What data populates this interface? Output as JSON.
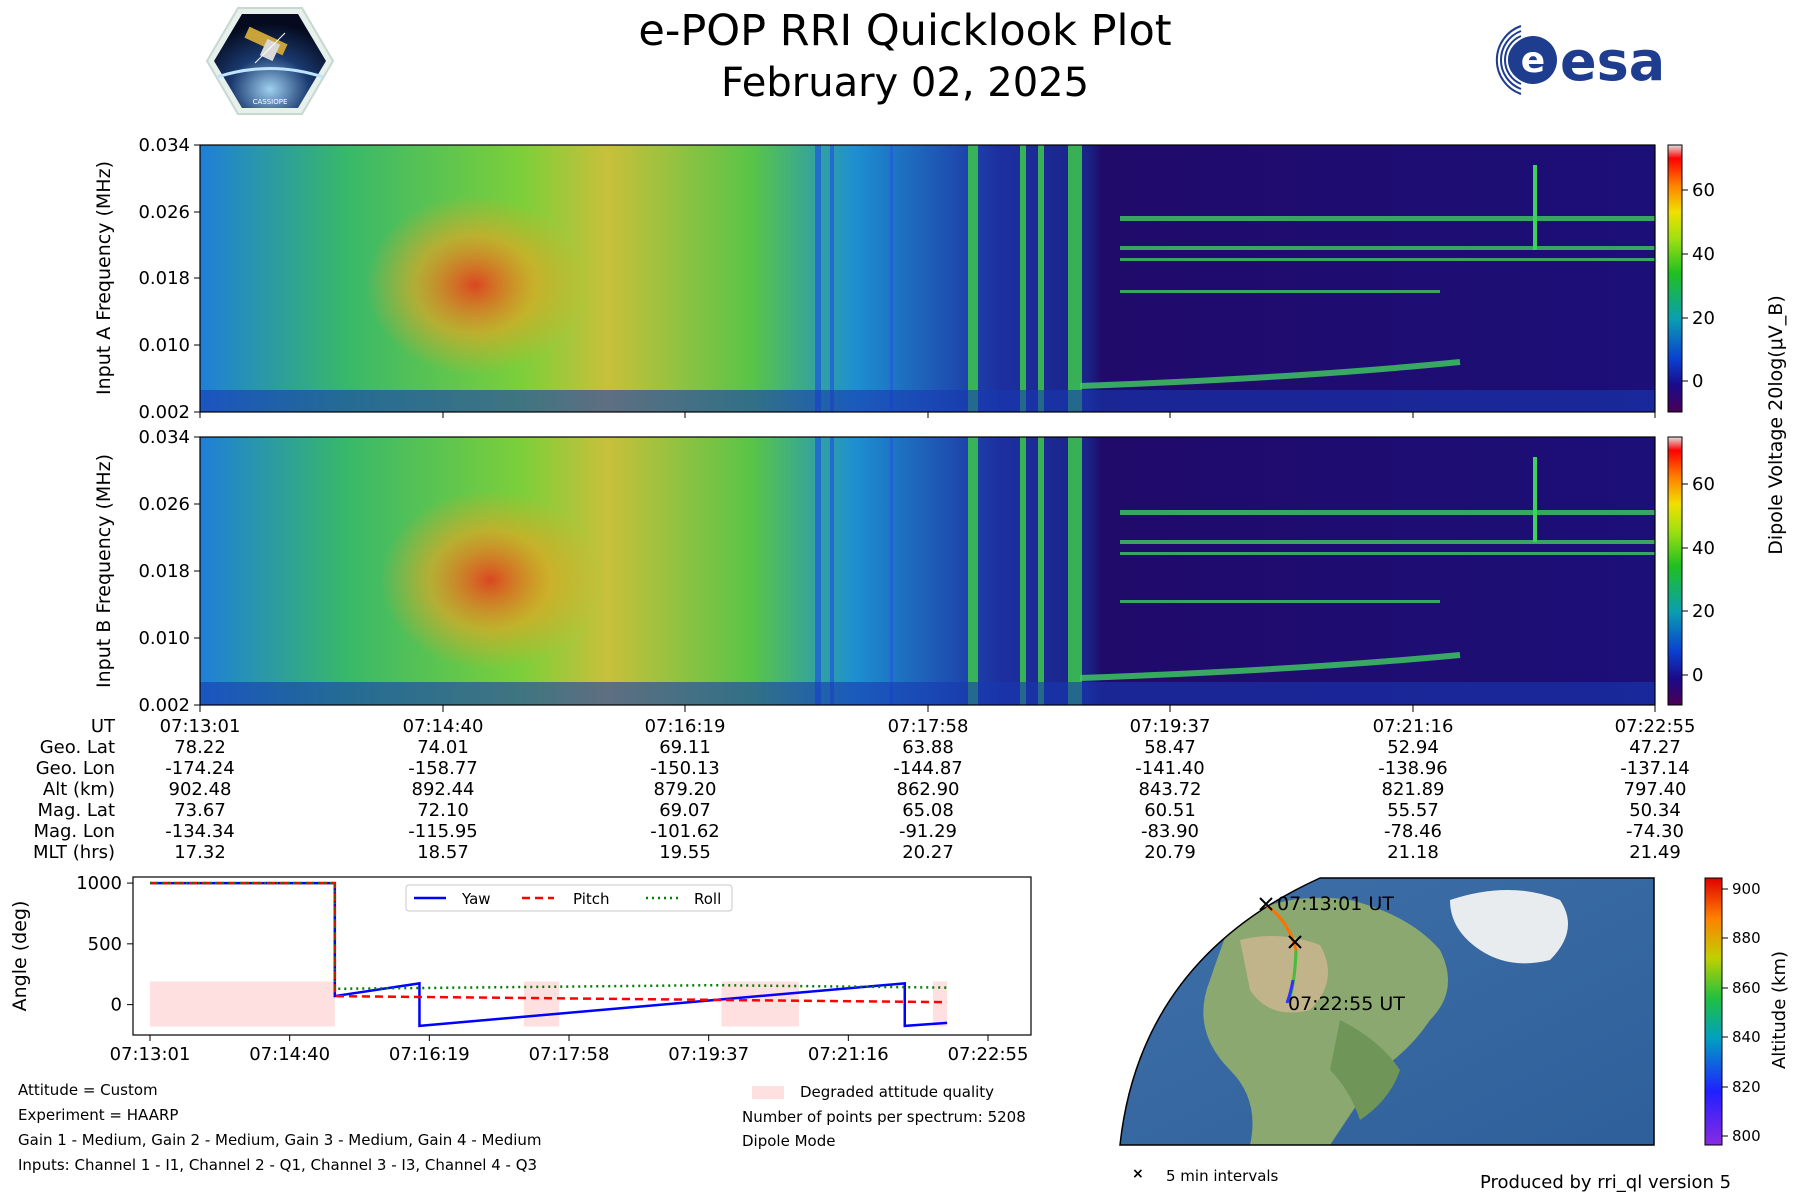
{
  "header": {
    "title": "e-POP RRI Quicklook Plot",
    "date": "February 02, 2025",
    "logo_left": "CASSIOPE",
    "logo_right": "esa"
  },
  "colors": {
    "yaw": "#0000ff",
    "pitch": "#ff0000",
    "roll": "#008000",
    "degraded": "#ffe0e0"
  },
  "chart_data": [
    {
      "type": "heatmap",
      "ylabel": "Input A Frequency (MHz)",
      "yticks": [
        "0.034",
        "0.026",
        "0.018",
        "0.010",
        "0.002"
      ],
      "ylim": [
        0.002,
        0.034
      ],
      "x_range": [
        "07:13:01",
        "07:22:55"
      ]
    },
    {
      "type": "heatmap",
      "ylabel": "Input B Frequency (MHz)",
      "yticks": [
        "0.034",
        "0.026",
        "0.018",
        "0.010",
        "0.002"
      ],
      "ylim": [
        0.002,
        0.034
      ],
      "x_range": [
        "07:13:01",
        "07:22:55"
      ]
    },
    {
      "type": "colorbar",
      "label": "Dipole Voltage 20log(μV_B)",
      "ticks": [
        "60",
        "40",
        "20",
        "0"
      ],
      "range": [
        -10,
        75
      ]
    },
    {
      "type": "line",
      "ylabel": "Angle (deg)",
      "yticks": [
        "1000",
        "500",
        "0"
      ],
      "ylim": [
        -250,
        1050
      ],
      "xticks": [
        "07:13:01",
        "07:14:40",
        "07:16:19",
        "07:17:58",
        "07:19:37",
        "07:21:16",
        "07:22:55"
      ],
      "x_seconds_range": [
        0,
        594
      ],
      "series": [
        {
          "name": "Yaw",
          "points": [
            [
              0,
              1000
            ],
            [
              131,
              1000
            ],
            [
              131,
              70
            ],
            [
              191,
              175
            ],
            [
              191,
              -175
            ],
            [
              535,
              175
            ],
            [
              535,
              -175
            ],
            [
              565,
              -150
            ]
          ]
        },
        {
          "name": "Pitch",
          "points": [
            [
              0,
              1000
            ],
            [
              131,
              1000
            ],
            [
              131,
              70
            ],
            [
              565,
              20
            ]
          ]
        },
        {
          "name": "Roll",
          "points": [
            [
              0,
              1000
            ],
            [
              131,
              1000
            ],
            [
              131,
              130
            ],
            [
              400,
              160
            ],
            [
              565,
              140
            ]
          ]
        }
      ],
      "degraded_intervals": [
        [
          0,
          131
        ],
        [
          265,
          290
        ],
        [
          405,
          460
        ],
        [
          555,
          565
        ]
      ],
      "degraded_range": [
        -180,
        190
      ],
      "legend": [
        "Yaw",
        "Pitch",
        "Roll"
      ]
    },
    {
      "type": "colorbar",
      "label": "Altitude (km)",
      "ticks": [
        "900",
        "880",
        "860",
        "840",
        "820",
        "800"
      ],
      "range": [
        796,
        904
      ]
    }
  ],
  "ephemeris": {
    "labels": [
      "UT",
      "Geo. Lat",
      "Geo. Lon",
      "Alt (km)",
      "Mag. Lat",
      "Mag. Lon",
      "MLT (hrs)"
    ],
    "columns": [
      [
        "07:13:01",
        "78.22",
        "-174.24",
        "902.48",
        "73.67",
        "-134.34",
        "17.32"
      ],
      [
        "07:14:40",
        "74.01",
        "-158.77",
        "892.44",
        "72.10",
        "-115.95",
        "18.57"
      ],
      [
        "07:16:19",
        "69.11",
        "-150.13",
        "879.20",
        "69.07",
        "-101.62",
        "19.55"
      ],
      [
        "07:17:58",
        "63.88",
        "-144.87",
        "862.90",
        "65.08",
        "-91.29",
        "20.27"
      ],
      [
        "07:19:37",
        "58.47",
        "-141.40",
        "843.72",
        "60.51",
        "-83.90",
        "20.79"
      ],
      [
        "07:21:16",
        "52.94",
        "-138.96",
        "821.89",
        "55.57",
        "-78.46",
        "21.18"
      ],
      [
        "07:22:55",
        "47.27",
        "-137.14",
        "797.40",
        "50.34",
        "-74.30",
        "21.49"
      ]
    ]
  },
  "map": {
    "start_label": "07:13:01 UT",
    "end_label": "07:22:55 UT",
    "marker_legend": "5 min intervals"
  },
  "info": {
    "attitude": "Attitude = Custom",
    "experiment": "Experiment = HAARP",
    "gains": "Gain 1 - Medium, Gain 2 - Medium, Gain 3 - Medium, Gain 4 - Medium",
    "inputs": "Inputs: Channel 1 - I1, Channel 2 - Q1, Channel 3 - I3, Channel 4 - Q3",
    "degraded_legend": "Degraded attitude quality",
    "points": "Number of points per spectrum: 5208",
    "mode": "Dipole Mode",
    "produced_by": "Produced by rri_ql version 5"
  }
}
